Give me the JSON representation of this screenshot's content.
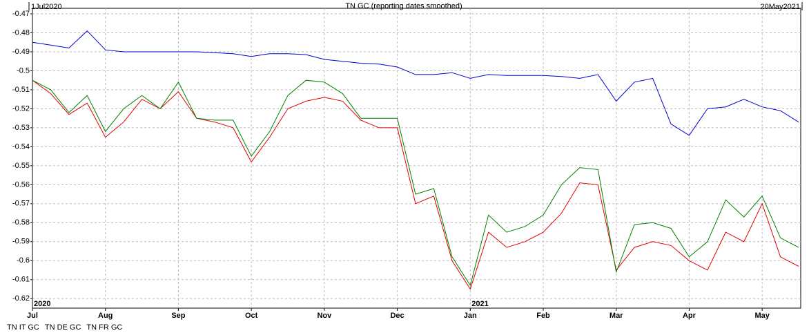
{
  "chart_data": {
    "type": "line",
    "title": "TN GC (reporting dates smoothed)",
    "start_label": "1Jul2020",
    "end_label": "20May2021",
    "year_labels": [
      {
        "label": "2020",
        "category": "Jul"
      },
      {
        "label": "2021",
        "category": "Jan"
      }
    ],
    "categories": [
      "Jul",
      null,
      null,
      null,
      "Aug",
      null,
      null,
      null,
      "Sep",
      null,
      null,
      null,
      "Oct",
      null,
      null,
      null,
      "Nov",
      null,
      null,
      null,
      "Dec",
      null,
      null,
      null,
      "Jan",
      null,
      null,
      null,
      "Feb",
      null,
      null,
      null,
      "Mar",
      null,
      null,
      null,
      "Apr",
      null,
      null,
      null,
      "May",
      null,
      null
    ],
    "series": [
      {
        "name": "TN IT GC",
        "color": "#0000cc",
        "values": [
          -0.485,
          -0.4865,
          -0.488,
          -0.479,
          -0.489,
          -0.49,
          -0.49,
          -0.49,
          -0.49,
          -0.49,
          -0.4905,
          -0.491,
          -0.4925,
          -0.491,
          -0.491,
          -0.4915,
          -0.494,
          -0.495,
          -0.496,
          -0.4965,
          -0.498,
          -0.502,
          -0.502,
          -0.501,
          -0.504,
          -0.502,
          -0.5025,
          -0.5025,
          -0.5025,
          -0.503,
          -0.504,
          -0.502,
          -0.516,
          -0.506,
          -0.504,
          -0.528,
          -0.534,
          -0.52,
          -0.519,
          -0.515,
          -0.519,
          -0.521,
          -0.527
        ]
      },
      {
        "name": "TN DE GC",
        "color": "#e00000",
        "values": [
          -0.505,
          -0.512,
          -0.523,
          -0.517,
          -0.535,
          -0.527,
          -0.515,
          -0.52,
          -0.511,
          -0.525,
          -0.527,
          -0.53,
          -0.548,
          -0.535,
          -0.52,
          -0.516,
          -0.514,
          -0.516,
          -0.526,
          -0.53,
          -0.53,
          -0.57,
          -0.566,
          -0.6,
          -0.615,
          -0.585,
          -0.593,
          -0.59,
          -0.585,
          -0.575,
          -0.559,
          -0.56,
          -0.605,
          -0.593,
          -0.59,
          -0.592,
          -0.6,
          -0.605,
          -0.585,
          -0.59,
          -0.57,
          -0.598,
          -0.603
        ]
      },
      {
        "name": "TN FR GC",
        "color": "#007f00",
        "values": [
          -0.505,
          -0.51,
          -0.522,
          -0.513,
          -0.532,
          -0.52,
          -0.513,
          -0.52,
          -0.506,
          -0.525,
          -0.526,
          -0.526,
          -0.545,
          -0.532,
          -0.513,
          -0.505,
          -0.506,
          -0.512,
          -0.525,
          -0.525,
          -0.525,
          -0.565,
          -0.562,
          -0.598,
          -0.613,
          -0.576,
          -0.585,
          -0.582,
          -0.576,
          -0.56,
          -0.551,
          -0.552,
          -0.606,
          -0.581,
          -0.58,
          -0.583,
          -0.598,
          -0.59,
          -0.568,
          -0.577,
          -0.566,
          -0.588,
          -0.593
        ]
      }
    ],
    "ylim": [
      -0.625,
      -0.47
    ],
    "yticks": [
      -0.47,
      -0.48,
      -0.49,
      -0.5,
      -0.51,
      -0.52,
      -0.53,
      -0.54,
      -0.55,
      -0.56,
      -0.57,
      -0.58,
      -0.59,
      -0.6,
      -0.61,
      -0.62
    ],
    "grid": true,
    "legend": "bottom-left"
  }
}
